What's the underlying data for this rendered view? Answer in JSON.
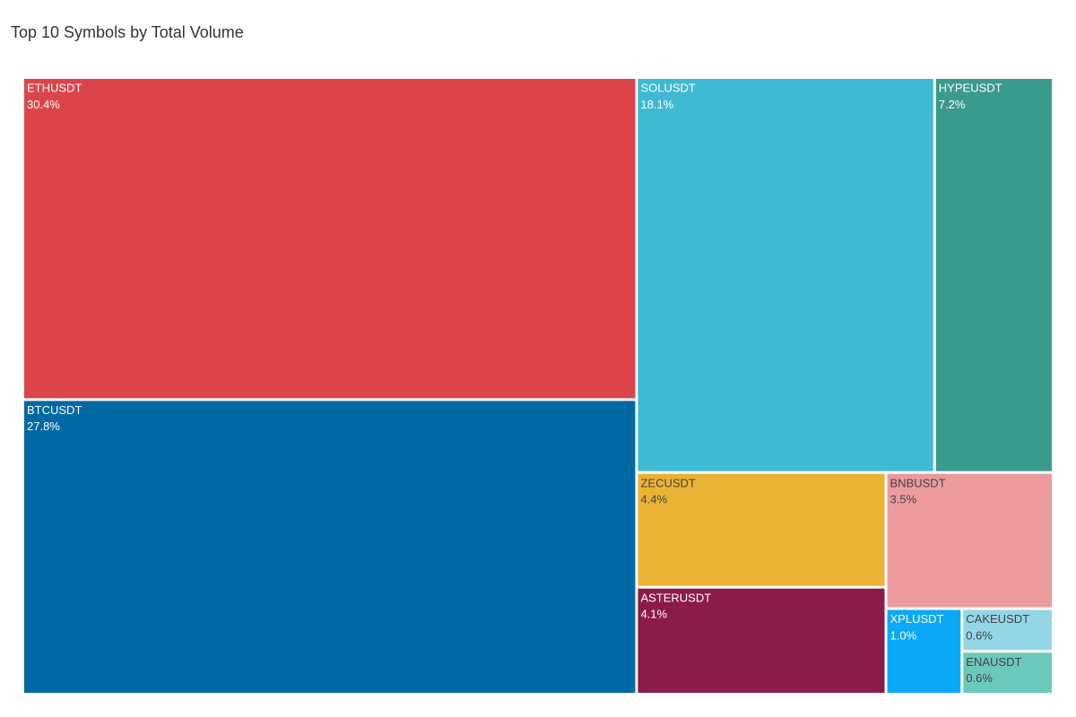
{
  "chart_data": {
    "type": "treemap",
    "title": "Top 10 Symbols by Total Volume",
    "categories": [
      "ETHUSDT",
      "BTCUSDT",
      "SOLUSDT",
      "HYPEUSDT",
      "ZECUSDT",
      "ASTERUSDT",
      "BNBUSDT",
      "XPLUSDT",
      "CAKEUSDT",
      "ENAUSDT"
    ],
    "values": [
      30.4,
      27.8,
      18.1,
      7.2,
      4.4,
      4.1,
      3.5,
      1.0,
      0.6,
      0.6
    ],
    "value_labels": [
      "30.4%",
      "27.8%",
      "18.1%",
      "7.2%",
      "4.4%",
      "4.1%",
      "3.5%",
      "1.0%",
      "0.6%",
      "0.6%"
    ],
    "colors": [
      "#db4549",
      "#0069a3",
      "#3fbad2",
      "#3a9a8b",
      "#ebb334",
      "#8b1c49",
      "#ec9a9d",
      "#0aa9f8",
      "#93d7e6",
      "#6bc9bb"
    ]
  }
}
